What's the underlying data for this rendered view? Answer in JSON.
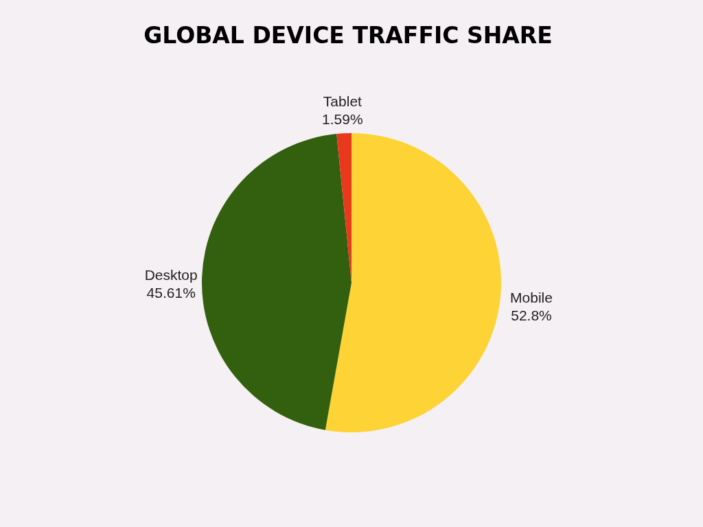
{
  "chart_data": {
    "type": "pie",
    "title": "GLOBAL DEVICE TRAFFIC SHARE",
    "categories": [
      "Mobile",
      "Desktop",
      "Tablet"
    ],
    "values": [
      52.8,
      45.61,
      1.59
    ],
    "colors": [
      "#fdd335",
      "#33600f",
      "#e8391d"
    ],
    "value_labels": [
      "52.8%",
      "45.61%",
      "1.59%"
    ]
  }
}
